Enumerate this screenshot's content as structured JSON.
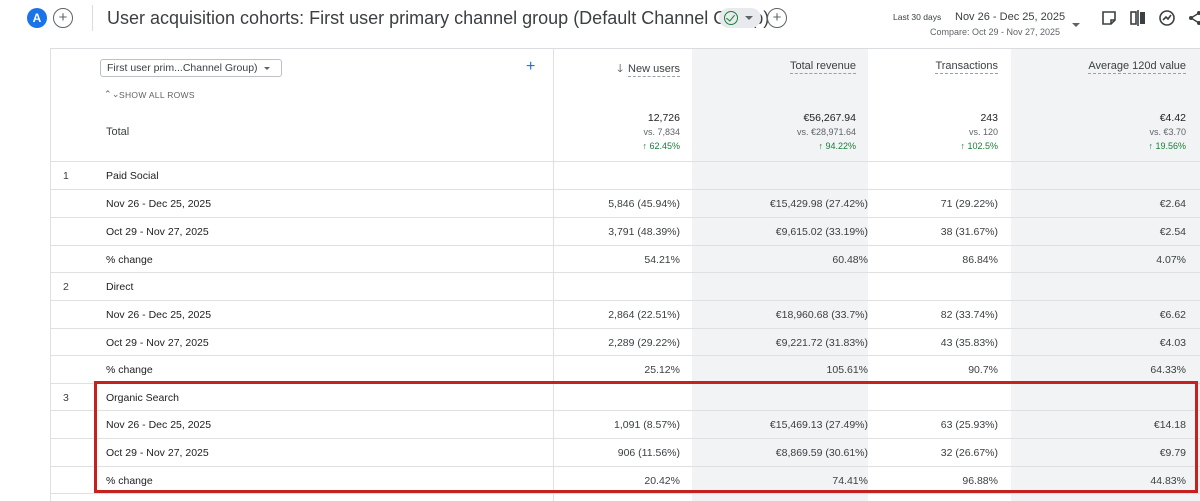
{
  "header": {
    "avatar_letter": "A",
    "title": "User acquisition cohorts: First user primary channel group (Default Channel Group)",
    "date_range_label": "Last 30 days",
    "date_range": "Nov 26 - Dec 25, 2025",
    "compare_text": "Compare: Oct 29 - Nov 27, 2025",
    "icons": [
      "plus-icon",
      "check-circle-icon",
      "chevron-down-icon",
      "note-icon",
      "compare-icon",
      "insights-icon",
      "share-icon"
    ]
  },
  "table": {
    "dimension_select": "First user prim...Channel Group)",
    "show_all_rows": "SHOW ALL ROWS",
    "columns": {
      "new_users": "New users",
      "total_revenue": "Total revenue",
      "transactions": "Transactions",
      "avg_value": "Average 120d value"
    },
    "total": {
      "label": "Total",
      "new_users": {
        "value": "12,726",
        "compare": "vs. 7,834",
        "change": "↑ 62.45%"
      },
      "total_revenue": {
        "value": "€56,267.94",
        "compare": "vs. €28,971.64",
        "change": "↑ 94.22%"
      },
      "transactions": {
        "value": "243",
        "compare": "vs. 120",
        "change": "↑ 102.5%"
      },
      "avg_value": {
        "value": "€4.42",
        "compare": "vs. €3.70",
        "change": "↑ 19.56%"
      }
    },
    "groups": [
      {
        "index": "1",
        "name": "Paid Social",
        "rows": [
          {
            "label": "Nov 26 - Dec 25, 2025",
            "new_users": "5,846 (45.94%)",
            "total_revenue": "€15,429.98 (27.42%)",
            "transactions": "71 (29.22%)",
            "avg_value": "€2.64"
          },
          {
            "label": "Oct 29 - Nov 27, 2025",
            "new_users": "3,791 (48.39%)",
            "total_revenue": "€9,615.02 (33.19%)",
            "transactions": "38 (31.67%)",
            "avg_value": "€2.54"
          },
          {
            "label": "% change",
            "new_users": "54.21%",
            "total_revenue": "60.48%",
            "transactions": "86.84%",
            "avg_value": "4.07%"
          }
        ]
      },
      {
        "index": "2",
        "name": "Direct",
        "rows": [
          {
            "label": "Nov 26 - Dec 25, 2025",
            "new_users": "2,864 (22.51%)",
            "total_revenue": "€18,960.68 (33.7%)",
            "transactions": "82 (33.74%)",
            "avg_value": "€6.62"
          },
          {
            "label": "Oct 29 - Nov 27, 2025",
            "new_users": "2,289 (29.22%)",
            "total_revenue": "€9,221.72 (31.83%)",
            "transactions": "43 (35.83%)",
            "avg_value": "€4.03"
          },
          {
            "label": "% change",
            "new_users": "25.12%",
            "total_revenue": "105.61%",
            "transactions": "90.7%",
            "avg_value": "64.33%"
          }
        ]
      },
      {
        "index": "3",
        "name": "Organic Search",
        "rows": [
          {
            "label": "Nov 26 - Dec 25, 2025",
            "new_users": "1,091 (8.57%)",
            "total_revenue": "€15,469.13 (27.49%)",
            "transactions": "63 (25.93%)",
            "avg_value": "€14.18"
          },
          {
            "label": "Oct 29 - Nov 27, 2025",
            "new_users": "906 (11.56%)",
            "total_revenue": "€8,869.59 (30.61%)",
            "transactions": "32 (26.67%)",
            "avg_value": "€9.79"
          },
          {
            "label": "% change",
            "new_users": "20.42%",
            "total_revenue": "74.41%",
            "transactions": "96.88%",
            "avg_value": "44.83%"
          }
        ]
      }
    ]
  },
  "colors": {
    "accent": "#1a73e8",
    "highlight_border": "#c5221f",
    "positive": "#188038",
    "shaded_column": "#f1f3f4"
  }
}
